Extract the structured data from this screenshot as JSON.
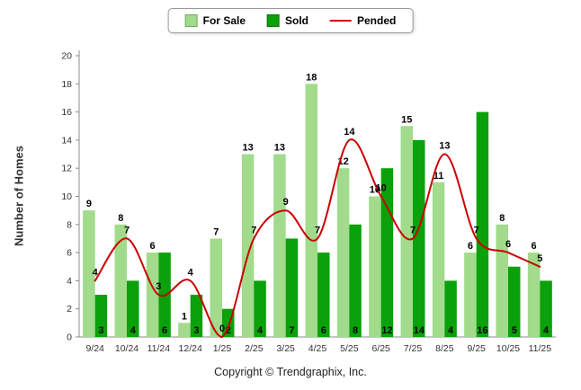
{
  "page": {
    "footer": "Copyright © Trendgraphix, Inc."
  },
  "legend": {
    "items": [
      {
        "label": "For Sale"
      },
      {
        "label": "Sold"
      },
      {
        "label": "Pended"
      }
    ]
  },
  "chart_data": {
    "type": "bar",
    "title": "",
    "xlabel": "",
    "ylabel": "Number of Homes",
    "ylim": [
      0,
      20
    ],
    "ytick_step": 2,
    "grid": false,
    "legend_position": "top",
    "categories": [
      "9/24",
      "10/24",
      "11/24",
      "12/24",
      "1/25",
      "2/25",
      "3/25",
      "4/25",
      "5/25",
      "6/25",
      "7/25",
      "8/25",
      "9/25",
      "10/25",
      "11/25"
    ],
    "series": [
      {
        "name": "For Sale",
        "type": "bar",
        "color": "#A1DB8B",
        "values": [
          9,
          8,
          6,
          1,
          7,
          13,
          13,
          18,
          12,
          10,
          15,
          11,
          6,
          8,
          6
        ]
      },
      {
        "name": "Sold",
        "type": "bar",
        "color": "#0AA10A",
        "values": [
          3,
          4,
          6,
          3,
          2,
          4,
          7,
          6,
          8,
          12,
          14,
          4,
          16,
          5,
          4
        ]
      },
      {
        "name": "Pended",
        "type": "line",
        "color": "#CC0000",
        "values": [
          4,
          7,
          3,
          4,
          0,
          7,
          9,
          7,
          14,
          10,
          7,
          13,
          7,
          6,
          5
        ]
      }
    ],
    "axis_color": "#8c8c8c"
  }
}
